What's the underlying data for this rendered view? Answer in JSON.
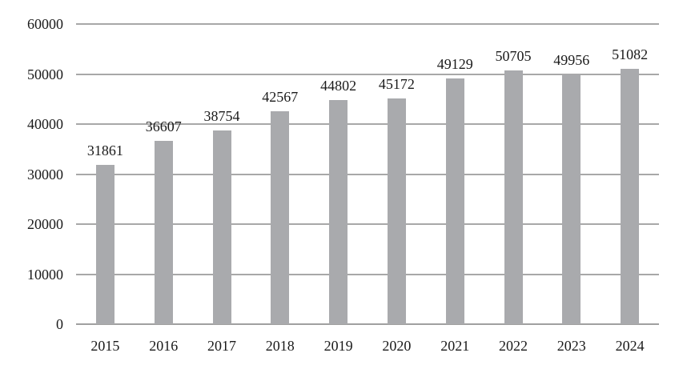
{
  "chart_data": {
    "type": "bar",
    "title": "",
    "xlabel": "",
    "ylabel": "",
    "categories": [
      "2015",
      "2016",
      "2017",
      "2018",
      "2019",
      "2020",
      "2021",
      "2022",
      "2023",
      "2024"
    ],
    "values": [
      31861,
      36607,
      38754,
      42567,
      44802,
      45172,
      49129,
      50705,
      49956,
      51082
    ],
    "data_labels": [
      "31861",
      "36607",
      "38754",
      "42567",
      "44802",
      "45172",
      "49129",
      "50705",
      "49956",
      "51082"
    ],
    "ylim": [
      0,
      60000
    ],
    "yticks": [
      "0",
      "10000",
      "20000",
      "30000",
      "40000",
      "50000",
      "60000"
    ],
    "grid": true,
    "legend": null,
    "bar_color": "#a9aaad",
    "grid_color": "#a8a8a8"
  }
}
